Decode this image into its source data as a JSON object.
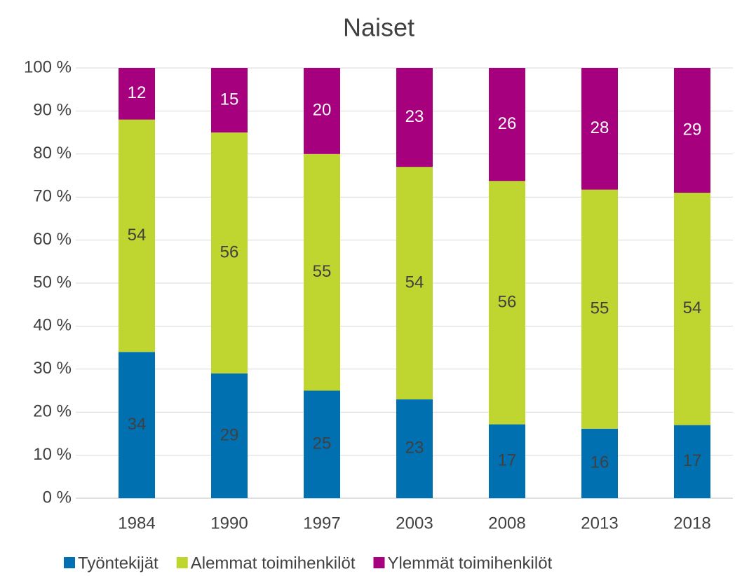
{
  "chart_data": {
    "type": "bar",
    "stack": "percent",
    "title": "Naiset",
    "categories": [
      "1984",
      "1990",
      "1997",
      "2003",
      "2008",
      "2013",
      "2018"
    ],
    "series": [
      {
        "name": "Työntekijät",
        "color": "#0070b0",
        "label_color": "#404040",
        "values": [
          34,
          29,
          25,
          23,
          17,
          16,
          17
        ]
      },
      {
        "name": "Alemmat toimihenkilöt",
        "color": "#c0d630",
        "label_color": "#404040",
        "values": [
          54,
          56,
          55,
          54,
          56,
          55,
          54
        ]
      },
      {
        "name": "Ylemmät toimihenkilöt",
        "color": "#a6007e",
        "label_color": "#ffffff",
        "values": [
          12,
          15,
          20,
          23,
          26,
          28,
          29
        ]
      }
    ],
    "ylim": [
      0,
      100
    ],
    "yticks": [
      {
        "value": 0,
        "label": "0 %"
      },
      {
        "value": 10,
        "label": "10 %"
      },
      {
        "value": 20,
        "label": "20 %"
      },
      {
        "value": 30,
        "label": "30 %"
      },
      {
        "value": 40,
        "label": "40 %"
      },
      {
        "value": 50,
        "label": "50 %"
      },
      {
        "value": 60,
        "label": "60 %"
      },
      {
        "value": 70,
        "label": "70 %"
      },
      {
        "value": 80,
        "label": "80 %"
      },
      {
        "value": 90,
        "label": "90 %"
      },
      {
        "value": 100,
        "label": "100 %"
      }
    ],
    "grid": true,
    "legend": "bottom"
  }
}
